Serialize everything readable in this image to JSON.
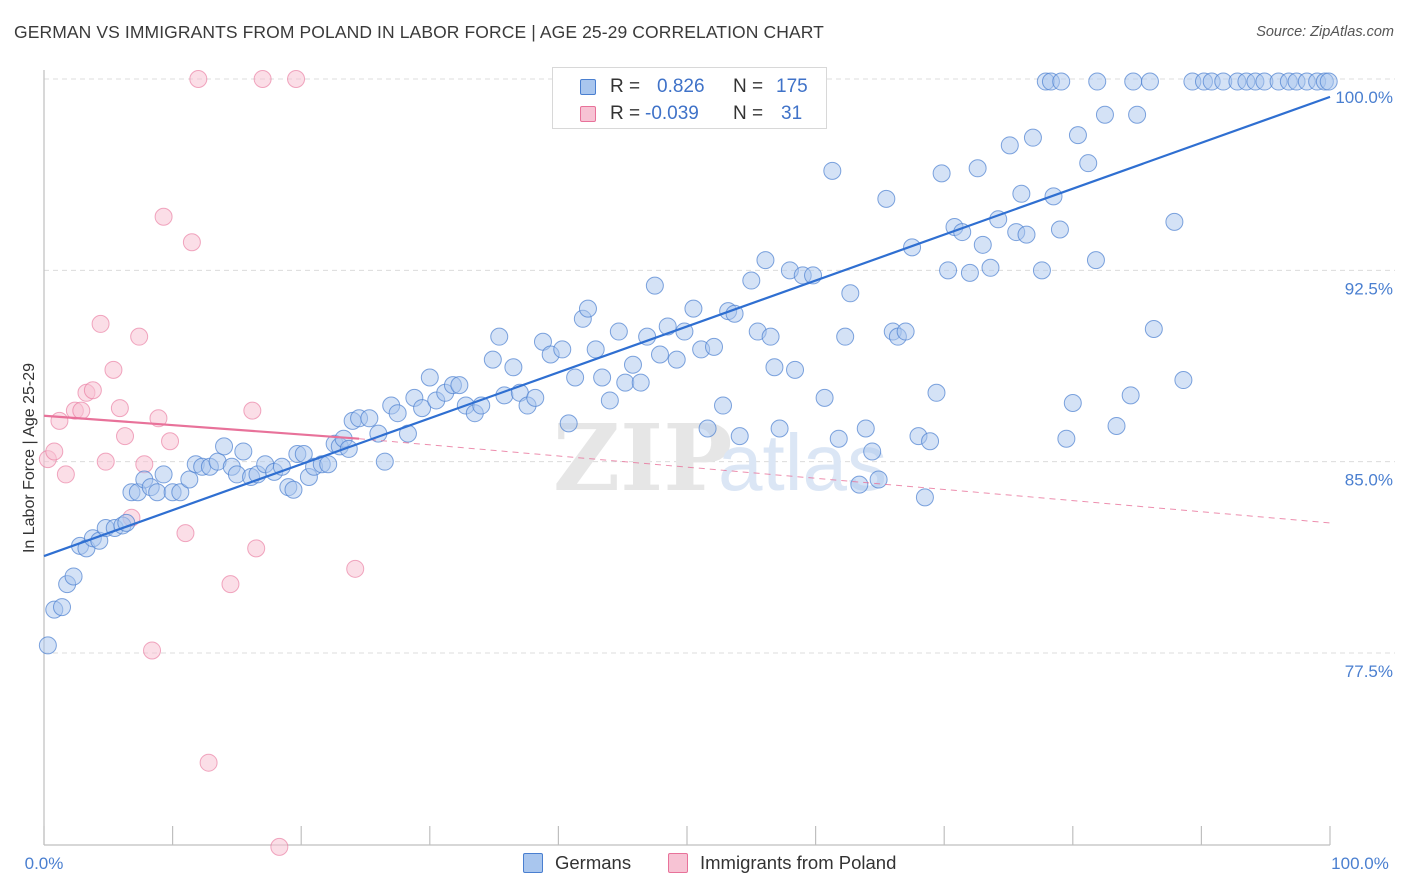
{
  "title": "GERMAN VS IMMIGRANTS FROM POLAND IN LABOR FORCE | AGE 25-29 CORRELATION CHART",
  "source": "Source: ZipAtlas.com",
  "watermark": {
    "zip": "ZIP",
    "atlas": "atlas"
  },
  "colors": {
    "blue": "#4a7fd0",
    "blue_fill": "#a9c6ee",
    "pink": "#e8729a",
    "pink_fill": "#f7c3d4",
    "grid": "#dddddd"
  },
  "legend": {
    "rows": [
      {
        "r_label": "R = ",
        "r_value": "0.826",
        "n_label": "N = ",
        "n_value": "175"
      },
      {
        "r_label": "R = ",
        "r_value": "-0.039",
        "n_label": "N = ",
        "n_value": "31"
      }
    ]
  },
  "bottom_legend": {
    "germans": "Germans",
    "poland": "Immigrants from Poland"
  },
  "chart_data": {
    "type": "scatter",
    "title": "GERMAN VS IMMIGRANTS FROM POLAND IN LABOR FORCE | AGE 25-29 CORRELATION CHART",
    "xlabel": "",
    "ylabel": "In Labor Force | Age 25-29",
    "xlim": [
      0,
      100
    ],
    "ylim": [
      70.0,
      101.0
    ],
    "x_tick_labels": [
      "0.0%",
      "100.0%"
    ],
    "y_ticks": [
      77.5,
      85.0,
      92.5,
      100.0
    ],
    "y_tick_labels": [
      "77.5%",
      "85.0%",
      "92.5%",
      "100.0%"
    ],
    "series": [
      {
        "name": "Germans",
        "r": 0.826,
        "n": 175,
        "trend": {
          "x": [
            0,
            100
          ],
          "y": [
            81.3,
            99.3
          ],
          "style": "solid"
        },
        "points": [
          [
            0.3,
            77.8
          ],
          [
            0.8,
            79.2
          ],
          [
            1.4,
            79.3
          ],
          [
            1.8,
            80.2
          ],
          [
            2.3,
            80.5
          ],
          [
            2.8,
            81.7
          ],
          [
            3.3,
            81.6
          ],
          [
            3.8,
            82.0
          ],
          [
            4.3,
            81.9
          ],
          [
            4.8,
            82.4
          ],
          [
            5.5,
            82.4
          ],
          [
            6.1,
            82.5
          ],
          [
            6.4,
            82.6
          ],
          [
            6.8,
            83.8
          ],
          [
            7.3,
            83.8
          ],
          [
            7.8,
            84.3
          ],
          [
            8.3,
            84.0
          ],
          [
            8.8,
            83.8
          ],
          [
            9.3,
            84.5
          ],
          [
            10.0,
            83.8
          ],
          [
            10.6,
            83.8
          ],
          [
            11.3,
            84.3
          ],
          [
            11.8,
            84.9
          ],
          [
            12.3,
            84.8
          ],
          [
            12.9,
            84.8
          ],
          [
            13.5,
            85.0
          ],
          [
            14.0,
            85.6
          ],
          [
            14.6,
            84.8
          ],
          [
            15.0,
            84.5
          ],
          [
            15.5,
            85.4
          ],
          [
            16.1,
            84.4
          ],
          [
            16.6,
            84.5
          ],
          [
            17.2,
            84.9
          ],
          [
            17.9,
            84.6
          ],
          [
            18.5,
            84.8
          ],
          [
            19.0,
            84.0
          ],
          [
            19.4,
            83.9
          ],
          [
            19.7,
            85.3
          ],
          [
            20.2,
            85.3
          ],
          [
            20.6,
            84.4
          ],
          [
            21.0,
            84.8
          ],
          [
            21.6,
            84.9
          ],
          [
            22.1,
            84.9
          ],
          [
            22.6,
            85.7
          ],
          [
            23.0,
            85.6
          ],
          [
            23.3,
            85.9
          ],
          [
            23.7,
            85.5
          ],
          [
            24.0,
            86.6
          ],
          [
            24.5,
            86.7
          ],
          [
            25.3,
            86.7
          ],
          [
            26.0,
            86.1
          ],
          [
            26.5,
            85.0
          ],
          [
            27.0,
            87.2
          ],
          [
            27.5,
            86.9
          ],
          [
            28.3,
            86.1
          ],
          [
            28.8,
            87.5
          ],
          [
            29.4,
            87.1
          ],
          [
            30.0,
            88.3
          ],
          [
            30.5,
            87.4
          ],
          [
            31.2,
            87.7
          ],
          [
            31.8,
            88.0
          ],
          [
            32.3,
            88.0
          ],
          [
            32.8,
            87.2
          ],
          [
            33.5,
            86.9
          ],
          [
            34.0,
            87.2
          ],
          [
            34.9,
            89.0
          ],
          [
            35.4,
            89.9
          ],
          [
            35.8,
            87.6
          ],
          [
            36.5,
            88.7
          ],
          [
            37.0,
            87.7
          ],
          [
            37.6,
            87.2
          ],
          [
            38.2,
            87.5
          ],
          [
            38.8,
            89.7
          ],
          [
            39.4,
            89.2
          ],
          [
            40.3,
            89.4
          ],
          [
            40.8,
            86.5
          ],
          [
            41.3,
            88.3
          ],
          [
            41.9,
            90.6
          ],
          [
            42.3,
            91.0
          ],
          [
            42.9,
            89.4
          ],
          [
            43.4,
            88.3
          ],
          [
            44.0,
            87.4
          ],
          [
            44.7,
            90.1
          ],
          [
            45.2,
            88.1
          ],
          [
            45.8,
            88.8
          ],
          [
            46.4,
            88.1
          ],
          [
            46.9,
            89.9
          ],
          [
            47.5,
            91.9
          ],
          [
            47.9,
            89.2
          ],
          [
            48.5,
            90.3
          ],
          [
            49.2,
            89.0
          ],
          [
            49.8,
            90.1
          ],
          [
            50.5,
            91.0
          ],
          [
            51.1,
            89.4
          ],
          [
            51.6,
            86.3
          ],
          [
            52.1,
            89.5
          ],
          [
            52.8,
            87.2
          ],
          [
            53.2,
            90.9
          ],
          [
            53.7,
            90.8
          ],
          [
            54.1,
            86.0
          ],
          [
            55.0,
            92.1
          ],
          [
            55.5,
            90.1
          ],
          [
            56.1,
            92.9
          ],
          [
            56.5,
            89.9
          ],
          [
            56.8,
            88.7
          ],
          [
            57.2,
            86.3
          ],
          [
            58.0,
            92.5
          ],
          [
            58.4,
            88.6
          ],
          [
            59.0,
            92.3
          ],
          [
            59.8,
            92.3
          ],
          [
            60.7,
            87.5
          ],
          [
            61.3,
            96.4
          ],
          [
            61.8,
            85.9
          ],
          [
            62.3,
            89.9
          ],
          [
            62.7,
            91.6
          ],
          [
            63.4,
            84.1
          ],
          [
            63.9,
            86.3
          ],
          [
            64.4,
            85.4
          ],
          [
            64.9,
            84.3
          ],
          [
            65.5,
            95.3
          ],
          [
            66.0,
            90.1
          ],
          [
            66.4,
            89.9
          ],
          [
            67.0,
            90.1
          ],
          [
            67.5,
            93.4
          ],
          [
            68.0,
            86.0
          ],
          [
            68.5,
            83.6
          ],
          [
            68.9,
            85.8
          ],
          [
            69.4,
            87.7
          ],
          [
            69.8,
            96.3
          ],
          [
            70.3,
            92.5
          ],
          [
            70.8,
            94.2
          ],
          [
            71.4,
            94.0
          ],
          [
            72.0,
            92.4
          ],
          [
            72.6,
            96.5
          ],
          [
            73.0,
            93.5
          ],
          [
            73.6,
            92.6
          ],
          [
            74.2,
            94.5
          ],
          [
            75.1,
            97.4
          ],
          [
            75.6,
            94.0
          ],
          [
            76.0,
            95.5
          ],
          [
            76.4,
            93.9
          ],
          [
            76.9,
            97.7
          ],
          [
            77.6,
            92.5
          ],
          [
            77.9,
            99.9
          ],
          [
            78.5,
            95.4
          ],
          [
            79.0,
            94.1
          ],
          [
            79.5,
            85.9
          ],
          [
            80.0,
            87.3
          ],
          [
            80.4,
            97.8
          ],
          [
            81.2,
            96.7
          ],
          [
            81.8,
            92.9
          ],
          [
            82.5,
            98.6
          ],
          [
            83.4,
            86.4
          ],
          [
            84.5,
            87.6
          ],
          [
            85.0,
            98.6
          ],
          [
            86.3,
            90.2
          ],
          [
            87.9,
            94.4
          ],
          [
            88.6,
            88.2
          ],
          [
            89.3,
            99.9
          ],
          [
            90.2,
            99.9
          ],
          [
            90.8,
            99.9
          ],
          [
            91.7,
            99.9
          ],
          [
            92.8,
            99.9
          ],
          [
            93.5,
            99.9
          ],
          [
            94.2,
            99.9
          ],
          [
            94.9,
            99.9
          ],
          [
            96.0,
            99.9
          ],
          [
            96.8,
            99.9
          ],
          [
            97.4,
            99.9
          ],
          [
            98.2,
            99.9
          ],
          [
            99.0,
            99.9
          ],
          [
            99.6,
            99.9
          ],
          [
            99.9,
            99.9
          ],
          [
            78.3,
            99.9
          ],
          [
            79.1,
            99.9
          ],
          [
            81.9,
            99.9
          ],
          [
            84.7,
            99.9
          ],
          [
            86.0,
            99.9
          ]
        ]
      },
      {
        "name": "Immigrants from Poland",
        "r": -0.039,
        "n": 31,
        "trend": {
          "x": [
            0,
            24.5
          ],
          "y": [
            86.8,
            85.9
          ],
          "style": "solid",
          "extension": {
            "x": [
              24.5,
              100
            ],
            "y": [
              85.9,
              82.6
            ],
            "style": "dashed"
          }
        },
        "points": [
          [
            0.3,
            85.1
          ],
          [
            0.8,
            85.4
          ],
          [
            1.2,
            86.6
          ],
          [
            1.7,
            84.5
          ],
          [
            2.4,
            87.0
          ],
          [
            2.9,
            87.0
          ],
          [
            3.3,
            87.7
          ],
          [
            3.8,
            87.8
          ],
          [
            4.4,
            90.4
          ],
          [
            4.8,
            85.0
          ],
          [
            5.4,
            88.6
          ],
          [
            5.9,
            87.1
          ],
          [
            6.3,
            86.0
          ],
          [
            6.8,
            82.8
          ],
          [
            7.4,
            89.9
          ],
          [
            7.8,
            84.9
          ],
          [
            8.4,
            77.6
          ],
          [
            8.9,
            86.7
          ],
          [
            9.3,
            94.6
          ],
          [
            9.8,
            85.8
          ],
          [
            11.0,
            82.2
          ],
          [
            11.5,
            93.6
          ],
          [
            12.0,
            100.0
          ],
          [
            12.8,
            73.2
          ],
          [
            14.5,
            80.2
          ],
          [
            16.2,
            87.0
          ],
          [
            16.5,
            81.6
          ],
          [
            17.0,
            100.0
          ],
          [
            18.3,
            69.9
          ],
          [
            19.6,
            100.0
          ],
          [
            24.2,
            80.8
          ]
        ]
      }
    ]
  }
}
